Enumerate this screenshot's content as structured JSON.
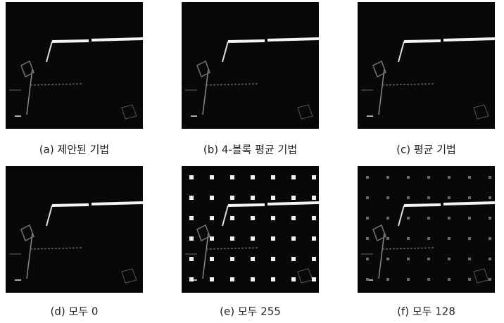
{
  "figure": {
    "panels": [
      {
        "caption": "(a) 제안된 기법"
      },
      {
        "caption": "(b) 4-블록 평균 기법"
      },
      {
        "caption": "(c) 평균 기법"
      },
      {
        "caption": "(d) 모두 0"
      },
      {
        "caption": "(e) 모두 255"
      },
      {
        "caption": "(f) 모두 128"
      }
    ]
  }
}
